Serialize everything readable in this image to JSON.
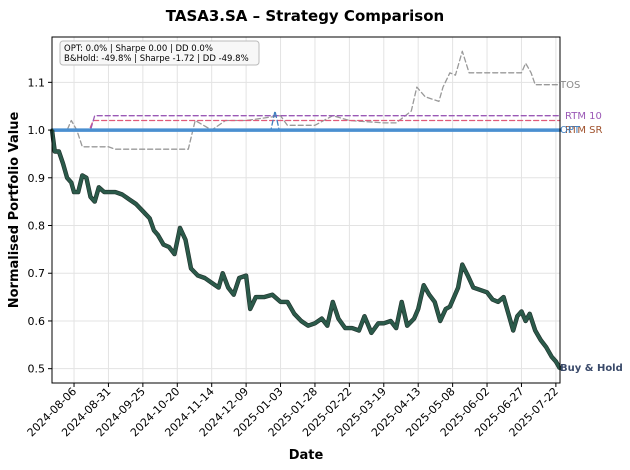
{
  "chart_data": {
    "type": "line",
    "title": "TASA3.SA – Strategy Comparison",
    "xlabel": "Date",
    "ylabel": "Normalised Portfolio Value",
    "ylim": [
      0.47,
      1.195
    ],
    "x_range": [
      "2024-07-21",
      "2025-07-25"
    ],
    "yticks": [
      "0.5",
      "0.6",
      "0.7",
      "0.8",
      "0.9",
      "1.0",
      "1.1"
    ],
    "xticks": [
      "2024-08-06",
      "2024-08-31",
      "2024-09-25",
      "2024-10-20",
      "2024-11-14",
      "2024-12-09",
      "2025-01-03",
      "2025-01-28",
      "2025-02-22",
      "2025-03-19",
      "2025-04-13",
      "2025-05-08",
      "2025-06-02",
      "2025-06-27",
      "2025-07-22"
    ],
    "grid": true,
    "annotation": {
      "line1": "OPT: 0.0% | Sharpe 0.00 | DD 0.0%",
      "line2": "B&Hold: -49.8% | Sharpe -1.72 | DD -49.8%"
    },
    "end_labels": {
      "tos": "TOS",
      "rtm10": "RTM 10",
      "rtm_sr": "RTM SR",
      "opt": "OPT",
      "bh": "Buy & Hold"
    },
    "colors": {
      "buy_hold": "#2b5a4a",
      "buy_hold_label": "#3a4a6a",
      "tos": "#999999",
      "rtm10": "#9b59b6",
      "rtm_sr": "#a0522d",
      "pink": "#e05a7a",
      "blue": "#3f7fbf",
      "opt": "#4a8fd0"
    },
    "series": [
      {
        "key": "buy_hold",
        "label": "Buy & Hold",
        "points": [
          [
            "2024-07-21",
            1.0
          ],
          [
            "2024-07-23",
            0.955
          ],
          [
            "2024-07-26",
            0.955
          ],
          [
            "2024-07-29",
            0.93
          ],
          [
            "2024-08-01",
            0.9
          ],
          [
            "2024-08-04",
            0.89
          ],
          [
            "2024-08-06",
            0.87
          ],
          [
            "2024-08-09",
            0.87
          ],
          [
            "2024-08-12",
            0.905
          ],
          [
            "2024-08-15",
            0.9
          ],
          [
            "2024-08-18",
            0.86
          ],
          [
            "2024-08-21",
            0.85
          ],
          [
            "2024-08-24",
            0.88
          ],
          [
            "2024-08-28",
            0.87
          ],
          [
            "2024-09-01",
            0.87
          ],
          [
            "2024-09-05",
            0.87
          ],
          [
            "2024-09-10",
            0.865
          ],
          [
            "2024-09-15",
            0.855
          ],
          [
            "2024-09-20",
            0.845
          ],
          [
            "2024-09-25",
            0.83
          ],
          [
            "2024-09-30",
            0.815
          ],
          [
            "2024-10-03",
            0.79
          ],
          [
            "2024-10-06",
            0.78
          ],
          [
            "2024-10-10",
            0.76
          ],
          [
            "2024-10-14",
            0.755
          ],
          [
            "2024-10-18",
            0.74
          ],
          [
            "2024-10-22",
            0.795
          ],
          [
            "2024-10-26",
            0.77
          ],
          [
            "2024-10-30",
            0.71
          ],
          [
            "2024-11-04",
            0.695
          ],
          [
            "2024-11-09",
            0.69
          ],
          [
            "2024-11-14",
            0.68
          ],
          [
            "2024-11-19",
            0.67
          ],
          [
            "2024-11-22",
            0.7
          ],
          [
            "2024-11-26",
            0.67
          ],
          [
            "2024-11-30",
            0.655
          ],
          [
            "2024-12-04",
            0.69
          ],
          [
            "2024-12-09",
            0.695
          ],
          [
            "2024-12-12",
            0.625
          ],
          [
            "2024-12-16",
            0.65
          ],
          [
            "2024-12-22",
            0.65
          ],
          [
            "2024-12-28",
            0.655
          ],
          [
            "2025-01-03",
            0.64
          ],
          [
            "2025-01-08",
            0.64
          ],
          [
            "2025-01-13",
            0.615
          ],
          [
            "2025-01-18",
            0.6
          ],
          [
            "2025-01-23",
            0.59
          ],
          [
            "2025-01-28",
            0.595
          ],
          [
            "2025-02-02",
            0.605
          ],
          [
            "2025-02-06",
            0.59
          ],
          [
            "2025-02-10",
            0.64
          ],
          [
            "2025-02-14",
            0.605
          ],
          [
            "2025-02-19",
            0.585
          ],
          [
            "2025-02-24",
            0.585
          ],
          [
            "2025-03-01",
            0.58
          ],
          [
            "2025-03-05",
            0.61
          ],
          [
            "2025-03-10",
            0.575
          ],
          [
            "2025-03-15",
            0.595
          ],
          [
            "2025-03-19",
            0.595
          ],
          [
            "2025-03-24",
            0.6
          ],
          [
            "2025-03-28",
            0.585
          ],
          [
            "2025-04-01",
            0.64
          ],
          [
            "2025-04-05",
            0.59
          ],
          [
            "2025-04-10",
            0.605
          ],
          [
            "2025-04-13",
            0.625
          ],
          [
            "2025-04-17",
            0.675
          ],
          [
            "2025-04-21",
            0.655
          ],
          [
            "2025-04-25",
            0.64
          ],
          [
            "2025-04-29",
            0.6
          ],
          [
            "2025-05-03",
            0.625
          ],
          [
            "2025-05-06",
            0.63
          ],
          [
            "2025-05-09",
            0.65
          ],
          [
            "2025-05-12",
            0.67
          ],
          [
            "2025-05-15",
            0.718
          ],
          [
            "2025-05-19",
            0.695
          ],
          [
            "2025-05-23",
            0.67
          ],
          [
            "2025-05-28",
            0.665
          ],
          [
            "2025-06-02",
            0.66
          ],
          [
            "2025-06-06",
            0.645
          ],
          [
            "2025-06-10",
            0.64
          ],
          [
            "2025-06-14",
            0.65
          ],
          [
            "2025-06-18",
            0.61
          ],
          [
            "2025-06-21",
            0.58
          ],
          [
            "2025-06-24",
            0.61
          ],
          [
            "2025-06-27",
            0.62
          ],
          [
            "2025-06-30",
            0.6
          ],
          [
            "2025-07-03",
            0.615
          ],
          [
            "2025-07-07",
            0.58
          ],
          [
            "2025-07-11",
            0.56
          ],
          [
            "2025-07-15",
            0.545
          ],
          [
            "2025-07-19",
            0.525
          ],
          [
            "2025-07-22",
            0.515
          ],
          [
            "2025-07-25",
            0.5
          ]
        ]
      },
      {
        "key": "tos",
        "label": "TOS",
        "points": [
          [
            "2024-07-21",
            1.0
          ],
          [
            "2024-08-01",
            1.0
          ],
          [
            "2024-08-04",
            1.02
          ],
          [
            "2024-08-08",
            1.0
          ],
          [
            "2024-08-12",
            0.965
          ],
          [
            "2024-08-31",
            0.965
          ],
          [
            "2024-09-05",
            0.96
          ],
          [
            "2024-09-15",
            0.96
          ],
          [
            "2024-10-20",
            0.96
          ],
          [
            "2024-10-28",
            0.96
          ],
          [
            "2024-11-02",
            1.02
          ],
          [
            "2024-11-14",
            1.0
          ],
          [
            "2024-11-24",
            1.02
          ],
          [
            "2024-12-09",
            1.02
          ],
          [
            "2025-01-03",
            1.03
          ],
          [
            "2025-01-08",
            1.01
          ],
          [
            "2025-01-28",
            1.01
          ],
          [
            "2025-02-10",
            1.03
          ],
          [
            "2025-02-22",
            1.02
          ],
          [
            "2025-03-19",
            1.015
          ],
          [
            "2025-03-28",
            1.015
          ],
          [
            "2025-04-08",
            1.04
          ],
          [
            "2025-04-12",
            1.09
          ],
          [
            "2025-04-18",
            1.07
          ],
          [
            "2025-04-28",
            1.06
          ],
          [
            "2025-05-01",
            1.09
          ],
          [
            "2025-05-06",
            1.12
          ],
          [
            "2025-05-10",
            1.115
          ],
          [
            "2025-05-15",
            1.165
          ],
          [
            "2025-05-20",
            1.12
          ],
          [
            "2025-06-02",
            1.12
          ],
          [
            "2025-06-27",
            1.12
          ],
          [
            "2025-06-30",
            1.14
          ],
          [
            "2025-07-04",
            1.12
          ],
          [
            "2025-07-07",
            1.095
          ],
          [
            "2025-07-25",
            1.095
          ]
        ]
      },
      {
        "key": "pink",
        "label": "",
        "points": [
          [
            "2024-07-21",
            1.0
          ],
          [
            "2024-08-17",
            1.0
          ],
          [
            "2024-08-20",
            1.02
          ],
          [
            "2025-07-25",
            1.02
          ]
        ]
      },
      {
        "key": "rtm10",
        "label": "RTM 10",
        "points": [
          [
            "2024-07-21",
            1.0
          ],
          [
            "2024-08-18",
            1.0
          ],
          [
            "2024-08-21",
            1.03
          ],
          [
            "2025-07-25",
            1.03
          ]
        ]
      },
      {
        "key": "blue",
        "label": "",
        "points": [
          [
            "2024-07-21",
            1.0
          ],
          [
            "2024-12-27",
            1.0
          ],
          [
            "2024-12-30",
            1.04
          ],
          [
            "2025-01-02",
            1.0
          ],
          [
            "2025-07-25",
            1.0
          ]
        ]
      },
      {
        "key": "rtm_sr",
        "label": "RTM SR",
        "points": [
          [
            "2024-07-21",
            1.0
          ],
          [
            "2025-07-25",
            1.0
          ]
        ]
      },
      {
        "key": "opt",
        "label": "OPT",
        "points": [
          [
            "2024-07-21",
            1.0
          ],
          [
            "2025-07-25",
            1.0
          ]
        ]
      }
    ]
  }
}
